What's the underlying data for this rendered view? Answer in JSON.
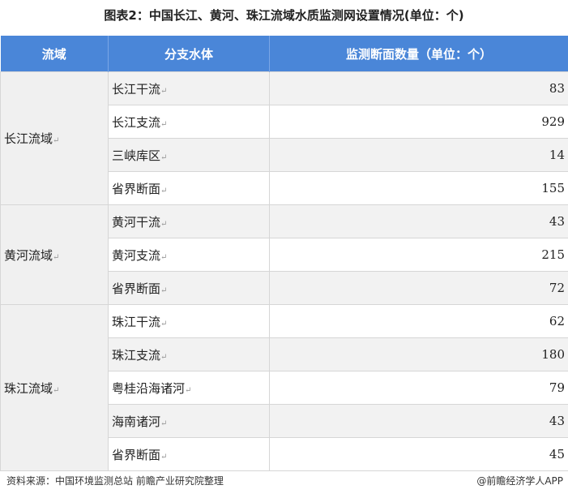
{
  "title": "图表2：中国长江、黄河、珠江流域水质监测网设置情况(单位：个)",
  "headers": [
    "流域",
    "分支水体",
    "监测断面数量（单位：个）"
  ],
  "groups": [
    {
      "basin": "长江流域",
      "rows": [
        [
          "长江干流",
          "83"
        ],
        [
          "长江支流",
          "929"
        ],
        [
          "三峡库区",
          "14"
        ],
        [
          "省界断面",
          "155"
        ]
      ]
    },
    {
      "basin": "黄河流域",
      "rows": [
        [
          "黄河干流",
          "43"
        ],
        [
          "黄河支流",
          "215"
        ],
        [
          "省界断面",
          "72"
        ]
      ]
    },
    {
      "basin": "珠江流域",
      "rows": [
        [
          "珠江干流",
          "62"
        ],
        [
          "珠江支流",
          "180"
        ],
        [
          "粤桂沿海诸河",
          "79"
        ],
        [
          "海南诸河",
          "43"
        ],
        [
          "省界断面",
          "45"
        ]
      ]
    }
  ],
  "footer": {
    "source": "资料来源：中国环境监测总站 前瞻产业研究院整理",
    "brand": "@前瞻经济学人APP"
  },
  "colors": {
    "header": "#4a86d8"
  }
}
